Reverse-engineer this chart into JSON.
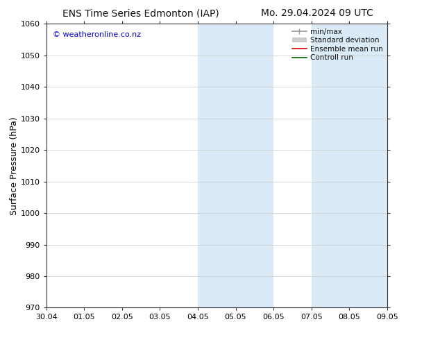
{
  "title_left": "ENS Time Series Edmonton (IAP)",
  "title_right": "Mo. 29.04.2024 09 UTC",
  "ylabel": "Surface Pressure (hPa)",
  "ylim": [
    970,
    1060
  ],
  "yticks": [
    970,
    980,
    990,
    1000,
    1010,
    1020,
    1030,
    1040,
    1050,
    1060
  ],
  "xlabel_ticks": [
    "30.04",
    "01.05",
    "02.05",
    "03.05",
    "04.05",
    "05.05",
    "06.05",
    "07.05",
    "08.05",
    "09.05"
  ],
  "watermark": "© weatheronline.co.nz",
  "watermark_color": "#0000cc",
  "background_color": "#ffffff",
  "plot_bg_color": "#ffffff",
  "shaded_regions": [
    {
      "xstart": 4.0,
      "xend": 5.0,
      "color": "#daeaf6"
    },
    {
      "xstart": 5.0,
      "xend": 6.0,
      "color": "#daeaf6"
    },
    {
      "xstart": 7.0,
      "xend": 8.0,
      "color": "#daeaf6"
    },
    {
      "xstart": 8.0,
      "xend": 9.0,
      "color": "#daeaf6"
    }
  ],
  "legend_entries": [
    {
      "label": "min/max",
      "color": "#999999",
      "lw": 1.2
    },
    {
      "label": "Standard deviation",
      "color": "#cccccc",
      "lw": 6
    },
    {
      "label": "Ensemble mean run",
      "color": "#dd0000",
      "lw": 1.2
    },
    {
      "label": "Controll run",
      "color": "#006600",
      "lw": 1.2
    }
  ],
  "tick_label_fontsize": 8,
  "axis_label_fontsize": 9,
  "title_fontsize": 10,
  "watermark_fontsize": 8,
  "legend_fontsize": 7.5,
  "spine_color": "#333333",
  "grid_color": "#cccccc"
}
